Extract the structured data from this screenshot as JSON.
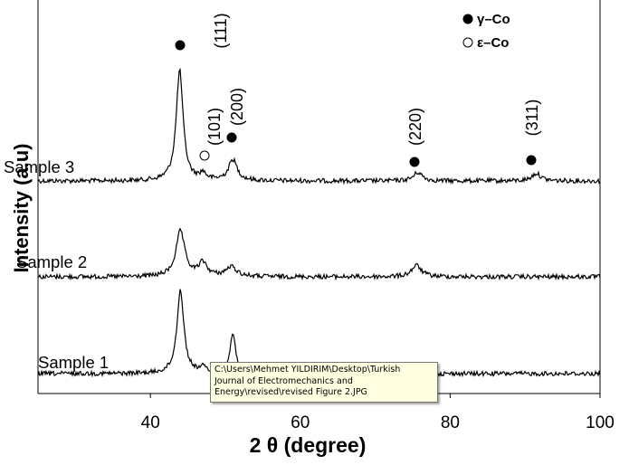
{
  "chart_data": {
    "type": "line",
    "xlabel": "2 θ (degree)",
    "ylabel": "Intensity (a.u)",
    "xlim": [
      25,
      100
    ],
    "x_ticks": [
      "40",
      "60",
      "80",
      "100"
    ],
    "x_tick_values": [
      40,
      60,
      80,
      100
    ],
    "grid": false,
    "legend": {
      "position": "top-right",
      "entries": [
        {
          "symbol": "filled-circle",
          "label": "γ–Co"
        },
        {
          "symbol": "open-circle",
          "label": "ε–Co"
        }
      ]
    },
    "series": [
      {
        "name": "Sample 3",
        "baseline": 1.0,
        "peaks": [
          {
            "x": 43.9,
            "height": 5.8,
            "width": 0.55
          },
          {
            "x": 47.0,
            "height": 0.35,
            "width": 0.5
          },
          {
            "x": 51.0,
            "height": 1.1,
            "width": 0.7
          },
          {
            "x": 75.7,
            "height": 0.45,
            "width": 0.7
          },
          {
            "x": 91.5,
            "height": 0.4,
            "width": 0.7
          }
        ]
      },
      {
        "name": "Sample 2",
        "baseline": 1.0,
        "peaks": [
          {
            "x": 44.0,
            "height": 2.4,
            "width": 0.7
          },
          {
            "x": 47.0,
            "height": 0.7,
            "width": 0.7
          },
          {
            "x": 50.8,
            "height": 0.5,
            "width": 0.9
          },
          {
            "x": 75.5,
            "height": 0.6,
            "width": 0.8
          }
        ]
      },
      {
        "name": "Sample 1",
        "baseline": 1.0,
        "peaks": [
          {
            "x": 44.0,
            "height": 4.2,
            "width": 0.55
          },
          {
            "x": 47.0,
            "height": 0.25,
            "width": 0.6
          },
          {
            "x": 51.0,
            "height": 2.0,
            "width": 0.45
          }
        ]
      }
    ],
    "annotations": [
      {
        "label": "(111)",
        "x": 43.9,
        "marker": "filled-circle"
      },
      {
        "label": "(101)",
        "x": 47.2,
        "marker": "open-circle"
      },
      {
        "label": "(200)",
        "x": 51.0,
        "marker": "filled-circle"
      },
      {
        "label": "(220)",
        "x": 75.7,
        "marker": "filled-circle"
      },
      {
        "label": "(311)",
        "x": 91.5,
        "marker": "filled-circle"
      }
    ]
  },
  "tooltip": {
    "lines": [
      "C:\\Users\\Mehmet YILDIRIM\\Desktop\\Turkish",
      "Journal of Electromechanics and",
      "Energy\\revised\\revised Figure 2.JPG"
    ]
  }
}
